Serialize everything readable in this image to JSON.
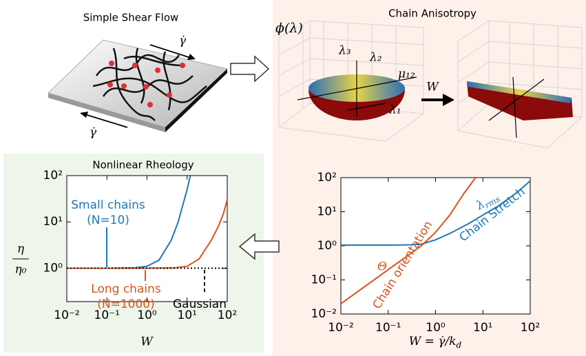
{
  "panels": {
    "shear_title": "Simple Shear Flow",
    "anisotropy_title": "Chain Anisotropy",
    "shear_rate_top": "γ̇",
    "shear_rate_bottom": "γ̇",
    "phi": "ϕ(λ)",
    "lambda3": "λ₃",
    "lambda2": "λ₂",
    "mu12": "μ₁₂",
    "lambda1": "λ₁",
    "arrow_label": "W"
  },
  "chart_data": [
    {
      "type": "line",
      "title": "Nonlinear Rheology",
      "xlabel": "W",
      "ylabel": [
        "η",
        "η₀"
      ],
      "xscale": "log",
      "yscale": "log",
      "xlim": [
        0.01,
        100
      ],
      "ylim": [
        0.19,
        100
      ],
      "xticks": [
        {
          "value": 0.01,
          "label": "10⁻²"
        },
        {
          "value": 0.1,
          "label": "10⁻¹"
        },
        {
          "value": 1,
          "label": "10⁰"
        },
        {
          "value": 10,
          "label": "10¹"
        },
        {
          "value": 100,
          "label": "10²"
        }
      ],
      "yticks": [
        {
          "value": 1,
          "label": "10⁰"
        },
        {
          "value": 10,
          "label": "10¹"
        },
        {
          "value": 100,
          "label": "10²"
        }
      ],
      "series": [
        {
          "color": "#1f77b4",
          "dash": false,
          "x": [
            0.01,
            0.1,
            0.5,
            1,
            2,
            4,
            6,
            8,
            10,
            12
          ],
          "values": [
            1,
            1,
            1.02,
            1.1,
            1.5,
            4,
            10,
            25,
            50,
            100
          ]
        },
        {
          "color": "#d95319",
          "dash": false,
          "x": [
            0.01,
            1,
            5,
            10,
            20,
            40,
            60,
            80,
            100
          ],
          "values": [
            1,
            1,
            1.02,
            1.1,
            1.6,
            4,
            8,
            15,
            30
          ]
        },
        {
          "color": "#000000",
          "dash": true,
          "x": [
            0.01,
            100
          ],
          "values": [
            1,
            1
          ]
        }
      ],
      "annotations": [
        {
          "text": [
            "Small chains",
            "(N=10)"
          ],
          "color": "#1f77b4"
        },
        {
          "text": [
            "Long chains",
            "(N=1000)"
          ],
          "color": "#d95319"
        },
        {
          "text": [
            "Gaussian"
          ],
          "color": "#000000"
        }
      ]
    },
    {
      "type": "line",
      "xlabel": [
        "W = γ̇/k",
        "d"
      ],
      "xscale": "log",
      "yscale": "log",
      "xlim": [
        0.01,
        100
      ],
      "ylim": [
        0.01,
        100
      ],
      "xticks": [
        {
          "value": 0.01,
          "label": "10⁻²"
        },
        {
          "value": 0.1,
          "label": "10⁻¹"
        },
        {
          "value": 1,
          "label": "10⁰"
        },
        {
          "value": 10,
          "label": "10¹"
        },
        {
          "value": 100,
          "label": "10²"
        }
      ],
      "yticks": [
        {
          "value": 0.01,
          "label": "10⁻²"
        },
        {
          "value": 0.1,
          "label": "10⁻¹"
        },
        {
          "value": 1,
          "label": "10⁰"
        },
        {
          "value": 10,
          "label": "10¹"
        },
        {
          "value": 100,
          "label": "10²"
        }
      ],
      "series": [
        {
          "color": "#1f77b4",
          "dash": false,
          "x": [
            0.01,
            0.1,
            0.3,
            0.5,
            1,
            2,
            5,
            10,
            20,
            50,
            100
          ],
          "values": [
            1.05,
            1.05,
            1.07,
            1.12,
            1.5,
            2.3,
            4.5,
            8,
            14,
            35,
            80
          ]
        },
        {
          "color": "#d95319",
          "dash": false,
          "x": [
            0.01,
            0.1,
            0.5,
            1,
            2,
            4,
            7
          ],
          "values": [
            0.02,
            0.2,
            1,
            2.5,
            8,
            35,
            100
          ]
        }
      ],
      "annotations": [
        {
          "text": [
            "Θ"
          ],
          "color": "#d95319"
        },
        {
          "text": [
            "Chain orientation"
          ],
          "color": "#d95319"
        },
        {
          "text": [
            "λ",
            "rms"
          ],
          "color": "#1f77b4"
        },
        {
          "text": [
            "Chain Stretch"
          ],
          "color": "#1f77b4"
        }
      ]
    }
  ]
}
